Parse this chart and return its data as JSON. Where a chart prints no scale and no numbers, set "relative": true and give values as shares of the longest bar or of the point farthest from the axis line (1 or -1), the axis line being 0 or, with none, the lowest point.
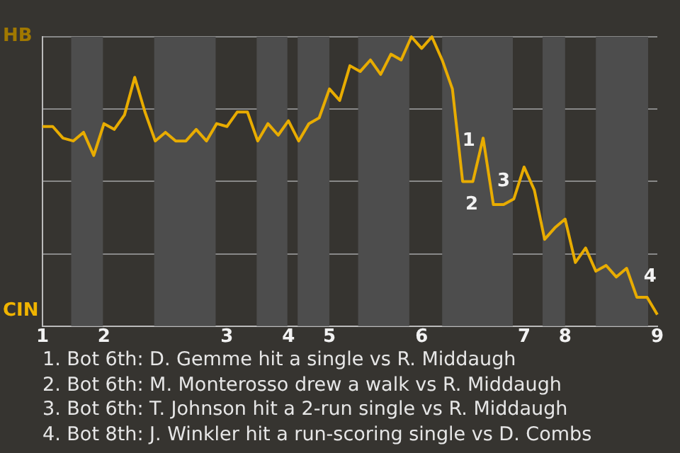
{
  "chart_data": {
    "type": "line",
    "color": "#e8ac00",
    "marker": "none",
    "line_style": "solid",
    "grid": "y",
    "relative": true,
    "categories": [
      "1",
      null,
      null,
      null,
      null,
      null,
      "2",
      null,
      null,
      null,
      null,
      null,
      null,
      null,
      null,
      null,
      null,
      null,
      "3",
      null,
      null,
      null,
      null,
      null,
      "4",
      null,
      null,
      null,
      "5",
      null,
      null,
      null,
      null,
      null,
      null,
      null,
      null,
      "6",
      null,
      null,
      null,
      null,
      null,
      null,
      null,
      null,
      null,
      "7",
      null,
      null,
      null,
      "8",
      null,
      null,
      null,
      null,
      null,
      null,
      null,
      null,
      "9"
    ],
    "values": [
      0.69,
      0.69,
      0.65,
      0.64,
      0.67,
      0.59,
      0.7,
      0.68,
      0.73,
      0.86,
      0.74,
      0.64,
      0.67,
      0.64,
      0.64,
      0.68,
      0.64,
      0.7,
      0.69,
      0.74,
      0.74,
      0.64,
      0.7,
      0.66,
      0.71,
      0.64,
      0.7,
      0.72,
      0.82,
      0.78,
      0.9,
      0.88,
      0.92,
      0.87,
      0.94,
      0.92,
      1,
      0.96,
      1,
      0.92,
      0.82,
      0.5,
      0.5,
      0.65,
      0.42,
      0.42,
      0.44,
      0.55,
      0.47,
      0.3,
      0.34,
      0.37,
      0.22,
      0.27,
      0.19,
      0.21,
      0.17,
      0.2,
      0.1,
      0.1,
      0.04
    ],
    "annotations": [
      "HB",
      "CIN",
      "1",
      "2",
      "3",
      "4",
      "1. Bot 6th: D. Gemme hit a single vs R. Middaugh",
      "2. Bot 6th: M. Monterosso drew a walk vs R. Middaugh",
      "3. Bot 6th: T. Johnson hit a 2-run single vs R. Middaugh",
      "4. Bot 8th: J. Winkler hit a run-scoring single vs D. Combs"
    ]
  }
}
